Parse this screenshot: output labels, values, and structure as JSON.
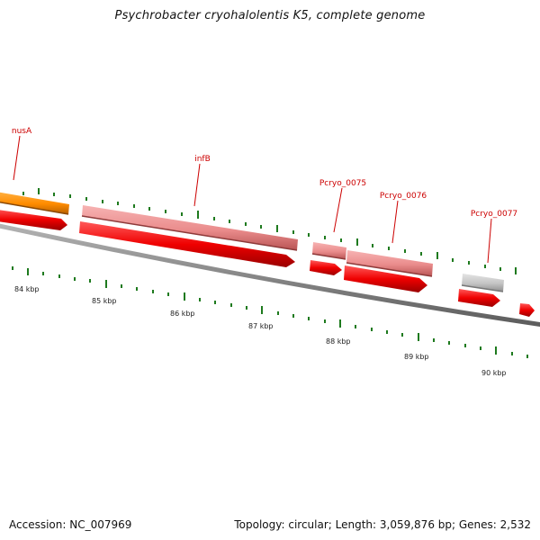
{
  "title": "Psychrobacter cryohalolentis K5, complete genome",
  "footer": {
    "accession_text": "Accession: NC_007969",
    "summary_text": "Topology: circular; Length: 3,059,876 bp; Genes: 2,532"
  },
  "colors": {
    "gene_label": "#cc0000",
    "tick": "#1e7a1e",
    "baseline": "#8a8a8a",
    "cds": "#e00000",
    "gene_pink": "#e98a8a",
    "gene_orange": "#ff8c00",
    "gene_gray": "#c4c4c4"
  },
  "genes": [
    {
      "label": "nusA",
      "color": "orange"
    },
    {
      "label": "infB",
      "color": "pink"
    },
    {
      "label": "Pcryo_0075",
      "color": "pink"
    },
    {
      "label": "Pcryo_0076",
      "color": "pink"
    },
    {
      "label": "Pcryo_0077",
      "color": "gray"
    }
  ],
  "scale_labels": [
    "84 kbp",
    "85 kbp",
    "86 kbp",
    "87 kbp",
    "88 kbp",
    "89 kbp",
    "90 kbp"
  ]
}
